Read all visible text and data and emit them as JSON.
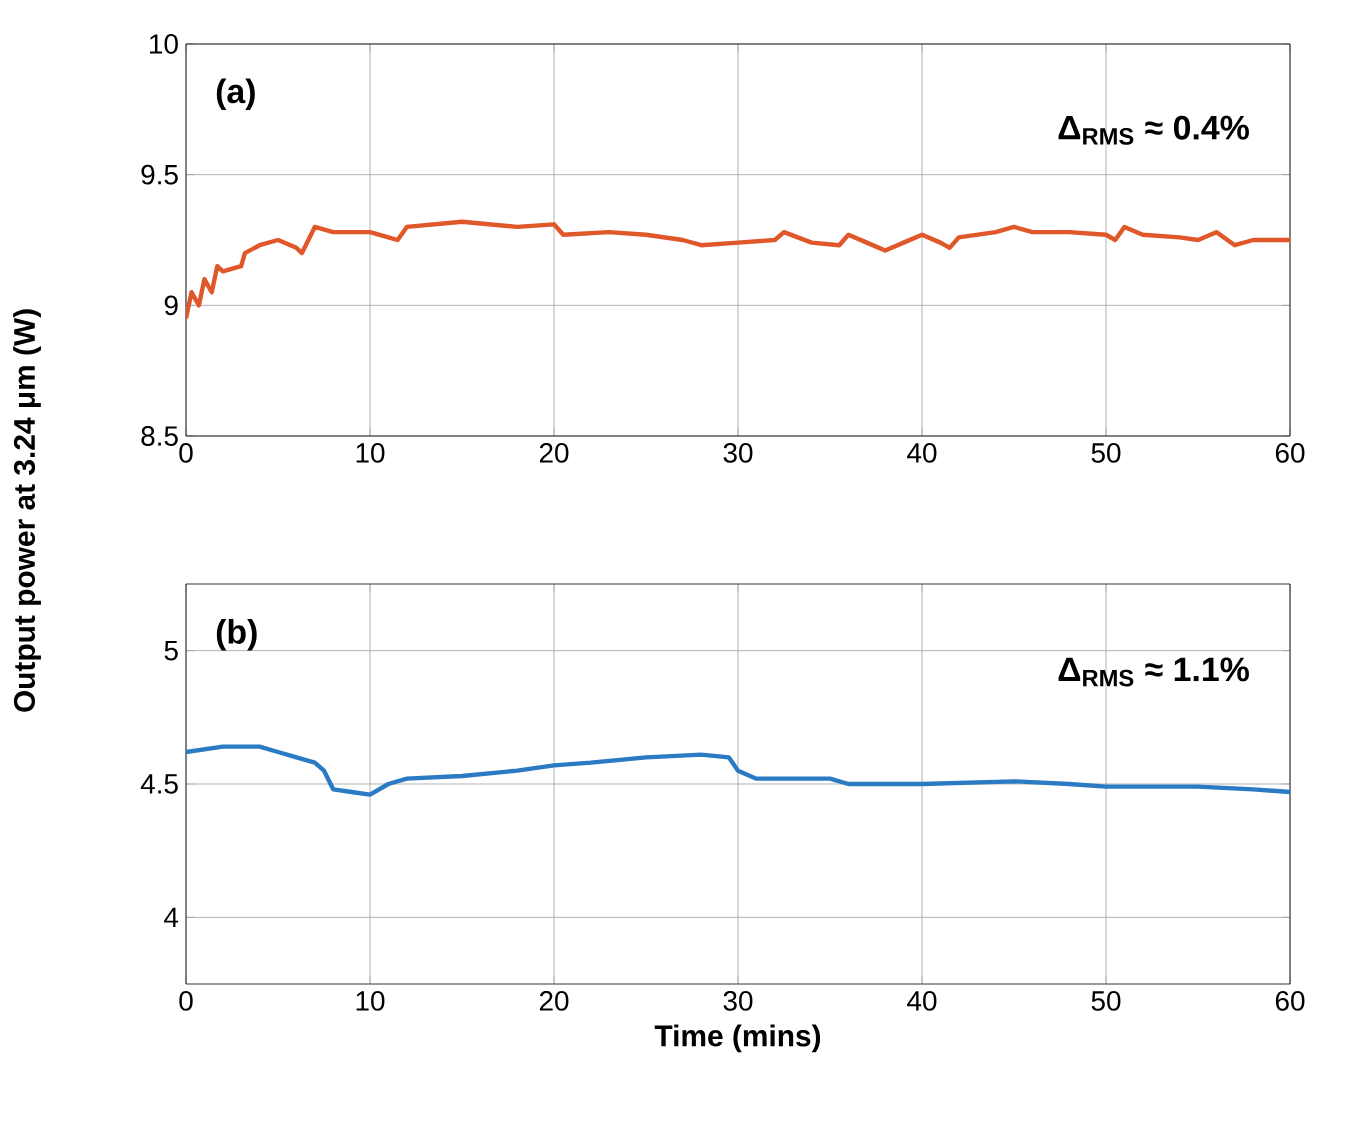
{
  "chart_data": [
    {
      "type": "line",
      "ylabel": "Output power at 3.24 μm (W)",
      "annotations": [
        "(a)",
        "Δ$_{RMS}$ ≈ 0.4%"
      ],
      "x": [
        0,
        0.3,
        0.7,
        1,
        1.4,
        1.7,
        2,
        3,
        3.2,
        4,
        5,
        6,
        6.3,
        7,
        8,
        10,
        11,
        11.5,
        12,
        15,
        18,
        20,
        20.5,
        23,
        25,
        27,
        28,
        30,
        32,
        32.5,
        34,
        35.5,
        36,
        37,
        38,
        39,
        40,
        41,
        41.5,
        42,
        44,
        45,
        46,
        48,
        50,
        50.5,
        51,
        52,
        54,
        55,
        56,
        57,
        58,
        60
      ],
      "values": [
        8.95,
        9.05,
        9.0,
        9.1,
        9.05,
        9.15,
        9.13,
        9.15,
        9.2,
        9.23,
        9.25,
        9.22,
        9.2,
        9.3,
        9.28,
        9.28,
        9.26,
        9.25,
        9.3,
        9.32,
        9.3,
        9.31,
        9.27,
        9.28,
        9.27,
        9.25,
        9.23,
        9.24,
        9.25,
        9.28,
        9.24,
        9.23,
        9.27,
        9.24,
        9.21,
        9.24,
        9.27,
        9.24,
        9.22,
        9.26,
        9.28,
        9.3,
        9.28,
        9.28,
        9.27,
        9.25,
        9.3,
        9.27,
        9.26,
        9.25,
        9.28,
        9.23,
        9.25,
        9.25
      ],
      "color": "#e0572a",
      "xlim": [
        0,
        60
      ],
      "xticks": [
        0,
        10,
        20,
        30,
        40,
        50,
        60
      ],
      "ylim": [
        8.5,
        10
      ],
      "yticks": [
        8.5,
        9,
        9.5,
        10
      ],
      "grid": true
    },
    {
      "type": "line",
      "xlabel": "Time (mins)",
      "annotations": [
        "(b)",
        "Δ$_{RMS}$ ≈ 1.1%"
      ],
      "x": [
        0,
        2,
        4,
        5,
        6,
        7,
        7.5,
        8,
        9,
        10,
        11,
        12,
        15,
        18,
        20,
        22,
        25,
        28,
        29.5,
        30,
        31,
        35,
        36,
        40,
        45,
        48,
        50,
        55,
        58,
        60
      ],
      "values": [
        4.62,
        4.64,
        4.64,
        4.62,
        4.6,
        4.58,
        4.55,
        4.48,
        4.47,
        4.46,
        4.5,
        4.52,
        4.53,
        4.55,
        4.57,
        4.58,
        4.6,
        4.61,
        4.6,
        4.55,
        4.52,
        4.52,
        4.5,
        4.5,
        4.51,
        4.5,
        4.49,
        4.49,
        4.48,
        4.47
      ],
      "color": "#2a7bc4",
      "xlim": [
        0,
        60
      ],
      "xticks": [
        0,
        10,
        20,
        30,
        40,
        50,
        60
      ],
      "ylim": [
        3.75,
        5.25
      ],
      "yticks": [
        4,
        4.5,
        5
      ],
      "grid": true
    }
  ]
}
